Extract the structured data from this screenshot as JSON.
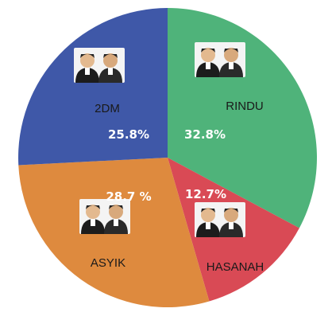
{
  "chart_data": {
    "type": "pie",
    "start_angle_deg": 0,
    "direction": "clockwise",
    "slices": [
      {
        "name": "RINDU",
        "value": 32.8,
        "label": "32.8%",
        "color": "#4fb37a",
        "photo_icon": "candidate-pair-photo-icon"
      },
      {
        "name": "HASANAH",
        "value": 12.7,
        "label": "12.7%",
        "color": "#d94a55",
        "photo_icon": "candidate-pair-photo-icon"
      },
      {
        "name": "ASYIK",
        "value": 28.7,
        "label": "28.7 %",
        "color": "#de8a3e",
        "photo_icon": "candidate-pair-photo-icon"
      },
      {
        "name": "2DM",
        "value": 25.8,
        "label": "25.8%",
        "color": "#3f58a8",
        "photo_icon": "candidate-pair-photo-icon"
      }
    ]
  }
}
